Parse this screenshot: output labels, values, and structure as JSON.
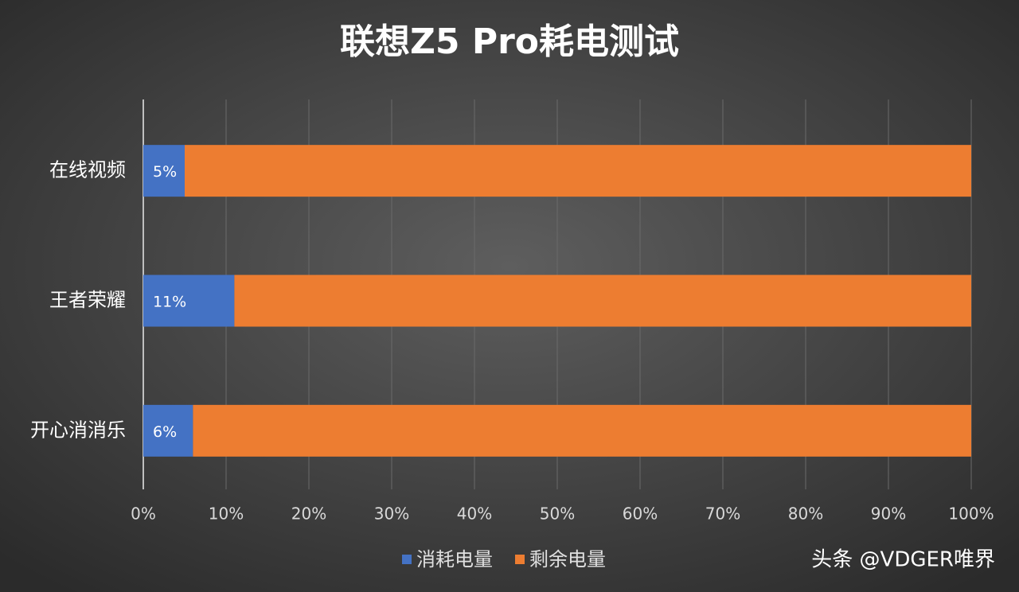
{
  "chart_data": {
    "type": "stacked-barh",
    "title": "联想Z5 Pro耗电测试",
    "categories": [
      "在线视频",
      "王者荣耀",
      "开心消消乐"
    ],
    "series": [
      {
        "name": "消耗电量",
        "color": "#4472c4",
        "values": [
          5,
          11,
          6
        ],
        "value_labels": [
          "5%",
          "11%",
          "6%"
        ]
      },
      {
        "name": "剩余电量",
        "color": "#ed7d31",
        "values": [
          95,
          89,
          94
        ]
      }
    ],
    "xlim": [
      0,
      100
    ],
    "xticks": [
      {
        "value": 0,
        "label": "0%"
      },
      {
        "value": 10,
        "label": "10%"
      },
      {
        "value": 20,
        "label": "20%"
      },
      {
        "value": 30,
        "label": "30%"
      },
      {
        "value": 40,
        "label": "40%"
      },
      {
        "value": 50,
        "label": "50%"
      },
      {
        "value": 60,
        "label": "60%"
      },
      {
        "value": 70,
        "label": "70%"
      },
      {
        "value": 80,
        "label": "80%"
      },
      {
        "value": 90,
        "label": "90%"
      },
      {
        "value": 100,
        "label": "100%"
      }
    ],
    "grid": true,
    "legend": "bottom",
    "watermark": "头条 @VDGER唯界"
  }
}
